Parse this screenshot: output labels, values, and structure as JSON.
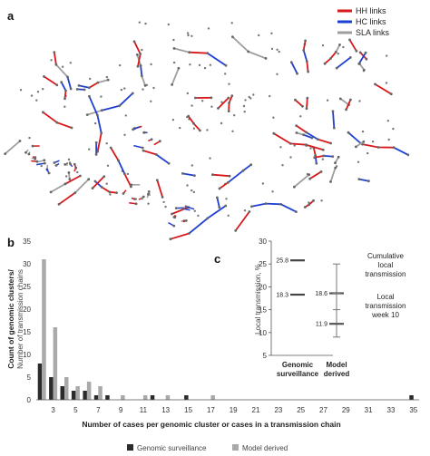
{
  "panel_a": {
    "letter": "a",
    "legend": [
      {
        "label": "HH links",
        "color": "#d7191c"
      },
      {
        "label": "HC links",
        "color": "#1f3fd1"
      },
      {
        "label": "SLA links",
        "color": "#9e9e9e"
      }
    ]
  },
  "panel_b": {
    "letter": "b"
  },
  "panel_c": {
    "letter": "c"
  },
  "legend_bottom": {
    "genomic": "Genomic surveillance",
    "model": "Model derived"
  },
  "colors": {
    "genomic": "#2b2b2b",
    "model": "#a9a9a9",
    "hh": "#d7191c",
    "hc": "#1f3fd1",
    "sla": "#9e9e9e"
  },
  "chart_data": [
    {
      "type": "bar",
      "ylabel_line1": "Count of genomic clusters/",
      "ylabel_line2": "Number of transmission chains",
      "xlabel": "Number of cases per genomic cluster or cases in a transmission chain",
      "ylim": [
        0,
        35
      ],
      "yticks": [
        0,
        5,
        10,
        15,
        20,
        25,
        30,
        35
      ],
      "xticks": [
        3,
        5,
        7,
        9,
        11,
        13,
        15,
        17,
        19,
        21,
        23,
        25,
        27,
        29,
        31,
        33,
        35
      ],
      "series": [
        {
          "name": "Genomic surveillance",
          "points": [
            [
              2,
              8
            ],
            [
              3,
              5
            ],
            [
              4,
              3
            ],
            [
              5,
              2
            ],
            [
              6,
              2
            ],
            [
              7,
              1
            ],
            [
              8,
              1
            ],
            [
              12,
              1
            ],
            [
              15,
              1
            ],
            [
              35,
              1
            ]
          ]
        },
        {
          "name": "Model derived",
          "points": [
            [
              2,
              31
            ],
            [
              3,
              16
            ],
            [
              4,
              5
            ],
            [
              5,
              3
            ],
            [
              6,
              4
            ],
            [
              7,
              3
            ],
            [
              9,
              1
            ],
            [
              11,
              1
            ],
            [
              13,
              1
            ],
            [
              17,
              1
            ]
          ]
        }
      ]
    },
    {
      "type": "interval",
      "ylabel": "Local transmission, %",
      "ylim": [
        5,
        30
      ],
      "yticks": [
        5,
        10,
        15,
        20,
        25,
        30
      ],
      "categories": [
        "Genomic surveillance",
        "Model derived"
      ],
      "cat_line1": [
        "Genomic",
        "Model"
      ],
      "cat_line2": [
        "surveillance",
        "derived"
      ],
      "genomic": {
        "cumulative": 25.8,
        "week10": 18.3
      },
      "model": {
        "cumulative": 18.6,
        "cumulative_low": 15,
        "cumulative_high": 25,
        "week10": 11.9,
        "week10_low": 9,
        "week10_high": 18.6
      },
      "value_labels": [
        "25.8",
        "18.3",
        "18.6",
        "11.9"
      ],
      "annotations": {
        "cumulative": [
          "Cumulative",
          "local",
          "transmission"
        ],
        "week10": [
          "Local",
          "transmission",
          "week 10"
        ]
      }
    }
  ]
}
